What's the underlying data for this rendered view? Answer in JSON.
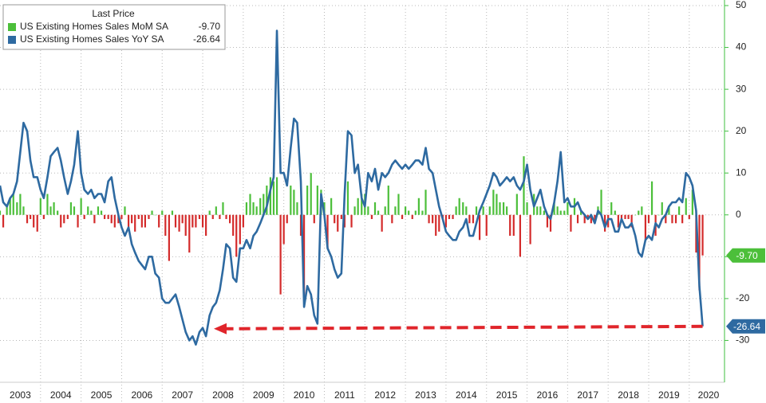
{
  "chart_data": {
    "type": "combo",
    "legend_title": "Last Price",
    "legend": "upper left",
    "grid": true,
    "xlim": [
      2003,
      2020.87
    ],
    "xticks": [
      2003,
      2004,
      2005,
      2006,
      2007,
      2008,
      2009,
      2010,
      2011,
      2012,
      2013,
      2014,
      2015,
      2016,
      2017,
      2018,
      2019,
      2020
    ],
    "ylim": [
      -40,
      50
    ],
    "yticks": [
      -30,
      -20,
      -10,
      0,
      10,
      20,
      30,
      40,
      50
    ],
    "x": [
      2003,
      2003.08,
      2003.17,
      2003.25,
      2003.33,
      2003.42,
      2003.5,
      2003.58,
      2003.67,
      2003.75,
      2003.83,
      2003.92,
      2004,
      2004.08,
      2004.17,
      2004.25,
      2004.33,
      2004.42,
      2004.5,
      2004.58,
      2004.67,
      2004.75,
      2004.83,
      2004.92,
      2005,
      2005.08,
      2005.17,
      2005.25,
      2005.33,
      2005.42,
      2005.5,
      2005.58,
      2005.67,
      2005.75,
      2005.83,
      2005.92,
      2006,
      2006.08,
      2006.17,
      2006.25,
      2006.33,
      2006.42,
      2006.5,
      2006.58,
      2006.67,
      2006.75,
      2006.83,
      2006.92,
      2007,
      2007.08,
      2007.17,
      2007.25,
      2007.33,
      2007.42,
      2007.5,
      2007.58,
      2007.67,
      2007.75,
      2007.83,
      2007.92,
      2008,
      2008.08,
      2008.17,
      2008.25,
      2008.33,
      2008.42,
      2008.5,
      2008.58,
      2008.67,
      2008.75,
      2008.83,
      2008.92,
      2009,
      2009.08,
      2009.17,
      2009.25,
      2009.33,
      2009.42,
      2009.5,
      2009.58,
      2009.67,
      2009.75,
      2009.83,
      2009.92,
      2010,
      2010.08,
      2010.17,
      2010.25,
      2010.33,
      2010.42,
      2010.5,
      2010.58,
      2010.67,
      2010.75,
      2010.83,
      2010.92,
      2011,
      2011.08,
      2011.17,
      2011.25,
      2011.33,
      2011.42,
      2011.5,
      2011.58,
      2011.67,
      2011.75,
      2011.83,
      2011.92,
      2012,
      2012.08,
      2012.17,
      2012.25,
      2012.33,
      2012.42,
      2012.5,
      2012.58,
      2012.67,
      2012.75,
      2012.83,
      2012.92,
      2013,
      2013.08,
      2013.17,
      2013.25,
      2013.33,
      2013.42,
      2013.5,
      2013.58,
      2013.67,
      2013.75,
      2013.83,
      2013.92,
      2014,
      2014.08,
      2014.17,
      2014.25,
      2014.33,
      2014.42,
      2014.5,
      2014.58,
      2014.67,
      2014.75,
      2014.83,
      2014.92,
      2015,
      2015.08,
      2015.17,
      2015.25,
      2015.33,
      2015.42,
      2015.5,
      2015.58,
      2015.67,
      2015.75,
      2015.83,
      2015.92,
      2016,
      2016.08,
      2016.17,
      2016.25,
      2016.33,
      2016.42,
      2016.5,
      2016.58,
      2016.67,
      2016.75,
      2016.83,
      2016.92,
      2017,
      2017.08,
      2017.17,
      2017.25,
      2017.33,
      2017.42,
      2017.5,
      2017.58,
      2017.67,
      2017.75,
      2017.83,
      2017.92,
      2018,
      2018.08,
      2018.17,
      2018.25,
      2018.33,
      2018.42,
      2018.5,
      2018.58,
      2018.67,
      2018.75,
      2018.83,
      2018.92,
      2019,
      2019.08,
      2019.17,
      2019.25,
      2019.33,
      2019.42,
      2019.5,
      2019.58,
      2019.67,
      2019.75,
      2019.83,
      2019.92,
      2020,
      2020.08,
      2020.17,
      2020.25,
      2020.33
    ],
    "series": [
      {
        "name": "US Existing Homes Sales MoM SA",
        "type": "bar",
        "color": "#4cbf3a",
        "negative_color": "#d42b2b",
        "last_value_label": "-9.70",
        "values": [
          1,
          -3,
          2,
          4,
          5,
          3,
          5,
          2,
          -2,
          -1,
          -3,
          -4,
          4,
          -1,
          5,
          2,
          3,
          1,
          -3,
          -2,
          -1,
          3,
          2,
          -3,
          4,
          -1,
          2,
          1,
          -2,
          2,
          1,
          -1,
          -1,
          -2,
          -3,
          -2,
          -1,
          2,
          -3,
          -2,
          -4,
          -1,
          -3,
          -3,
          -1,
          1,
          0,
          -3,
          1,
          -5,
          -11,
          1,
          -3,
          -4,
          -2,
          -5,
          -9,
          -3,
          -3,
          -1,
          -3,
          -5,
          1,
          -1,
          2,
          -1,
          3,
          -1,
          -2,
          -5,
          -10,
          -7,
          -3,
          3,
          5,
          3,
          2,
          4,
          5,
          7,
          9,
          8,
          9,
          -19,
          -7,
          -2,
          7,
          6,
          3,
          -5,
          -22,
          7,
          10,
          -2,
          7,
          6,
          3,
          -8,
          4,
          -2,
          -4,
          -1,
          -3,
          8,
          -3,
          2,
          4,
          5,
          5,
          2,
          -1,
          3,
          1,
          -4,
          2,
          7,
          -2,
          2,
          5,
          -1,
          2,
          1,
          -1,
          1,
          4,
          1,
          6,
          -2,
          -2,
          -5,
          -4,
          -1,
          -3,
          -1,
          -1,
          2,
          4,
          3,
          2,
          -2,
          -2,
          2,
          -6,
          2,
          -5,
          2,
          6,
          5,
          3,
          3,
          2,
          -5,
          -5,
          5,
          -10,
          14,
          3,
          -7,
          5,
          2,
          2,
          1,
          -3,
          -4,
          3,
          2,
          1,
          1,
          3,
          -4,
          4,
          -2,
          1,
          -2,
          -1,
          -2,
          -2,
          2,
          6,
          -4,
          -3,
          3,
          1,
          -3,
          -1,
          -1,
          -1,
          -3,
          0,
          1,
          2,
          -6,
          -2,
          8,
          -5,
          0,
          3,
          -2,
          2,
          -2,
          -2,
          2,
          -2,
          4,
          -1,
          6,
          -9,
          -18,
          -9.7
        ]
      },
      {
        "name": "US Existing Homes Sales YoY SA",
        "type": "line",
        "color": "#2e6aa1",
        "last_value_label": "-26.64",
        "values": [
          7,
          3,
          2,
          4,
          5,
          8,
          15,
          22,
          20,
          13,
          9,
          9,
          6,
          4,
          9,
          14,
          15,
          16,
          13,
          9,
          5,
          8,
          12,
          20,
          10,
          6,
          5,
          6,
          4,
          5,
          5,
          3,
          8,
          9,
          4,
          0,
          -3,
          -5,
          -3,
          -7,
          -9,
          -11,
          -12,
          -13,
          -10,
          -10,
          -14,
          -15,
          -20,
          -21,
          -21,
          -20,
          -19,
          -22,
          -25,
          -28,
          -30,
          -29,
          -31,
          -28,
          -27,
          -29,
          -24,
          -22,
          -21,
          -18,
          -13,
          -7,
          -8,
          -15,
          -16,
          -8,
          -8,
          -6,
          -8,
          -5,
          -4,
          -2,
          0,
          2,
          6,
          9,
          44,
          10,
          10,
          7,
          16,
          23,
          22,
          8,
          -22,
          -17,
          -19,
          -24,
          -26,
          5,
          0,
          -8,
          -10,
          -13,
          -15,
          -14,
          5,
          20,
          19,
          10,
          12,
          4,
          2,
          10,
          8,
          11,
          6,
          10,
          9,
          10,
          12,
          13,
          12,
          11,
          12,
          11,
          12,
          13,
          13,
          12,
          16,
          11,
          10,
          6,
          2,
          -1,
          -4,
          -5,
          -6,
          -6,
          -4,
          -3,
          -1,
          -5,
          -5,
          -2,
          1,
          3,
          5,
          7,
          10,
          9,
          7,
          8,
          9,
          8,
          9,
          7,
          6,
          8,
          12,
          6,
          2,
          4,
          6,
          2,
          0,
          -1,
          3,
          8,
          15,
          3,
          4,
          2,
          2,
          3,
          1,
          0,
          -1,
          0,
          -2,
          1,
          0,
          -3,
          -1,
          -1,
          -4,
          -4,
          -1,
          -3,
          -3,
          -2,
          -5,
          -9,
          -10,
          -6,
          -5,
          -6,
          -2,
          -3,
          -1,
          0,
          2,
          3,
          3,
          4,
          3,
          10,
          9,
          7,
          1,
          -17,
          -26.64
        ]
      }
    ]
  }
}
